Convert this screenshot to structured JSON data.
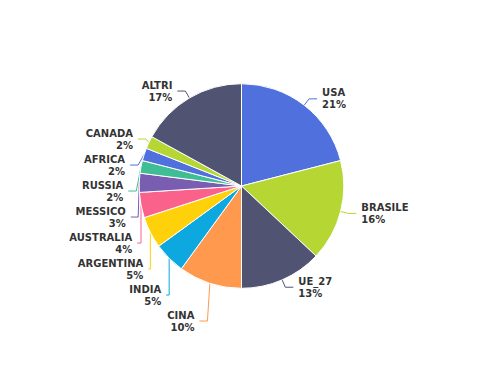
{
  "chart_data": {
    "type": "pie",
    "categories": [
      "USA",
      "BRASILE",
      "UE_27",
      "CINA",
      "INDIA",
      "ARGENTINA",
      "AUSTRALIA",
      "MESSICO",
      "RUSSIA",
      "AFRICA",
      "CANADA",
      "ALTRI"
    ],
    "values": [
      21,
      16,
      13,
      10,
      5,
      5,
      4,
      3,
      2,
      2,
      2,
      17
    ],
    "value_labels": [
      "21%",
      "16%",
      "13%",
      "10%",
      "5%",
      "5%",
      "4%",
      "3%",
      "2%",
      "2%",
      "2%",
      "17%"
    ],
    "data_labels": true
  }
}
